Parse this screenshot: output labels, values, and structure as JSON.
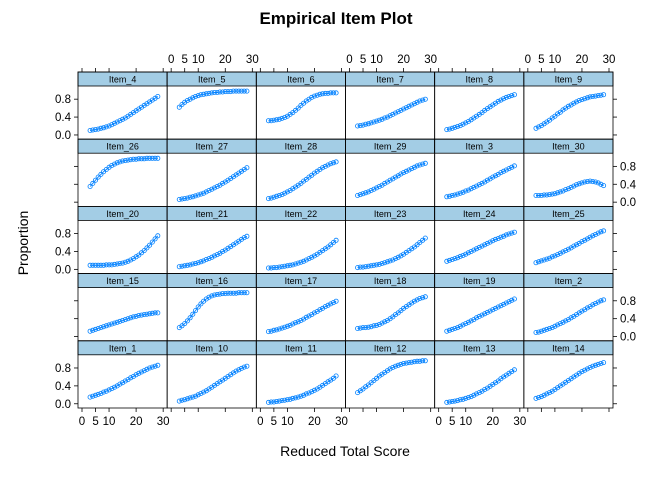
{
  "chart_data": {
    "type": "line",
    "title": "Empirical Item Plot",
    "xlabel": "Reduced Total Score",
    "ylabel": "Proportion",
    "xlim": [
      0,
      30
    ],
    "ylim": [
      -0.05,
      1.05
    ],
    "x_ticks": [
      0,
      5,
      10,
      20,
      30
    ],
    "x_tick_labels": [
      "0",
      "5",
      "10",
      "20",
      "30"
    ],
    "y_ticks": [
      0.0,
      0.4,
      0.8
    ],
    "y_tick_labels": [
      "0.0",
      "0.4",
      "0.8"
    ],
    "grid": false,
    "legend": "none",
    "colors": {
      "series": "#0080ff",
      "strip": "#a3cde5"
    },
    "x": [
      3,
      4,
      5,
      6,
      7,
      8,
      9,
      10,
      11,
      12,
      13,
      14,
      15,
      16,
      17,
      18,
      19,
      20,
      21,
      22,
      23,
      24,
      25,
      26,
      27,
      28
    ],
    "panel_rows": [
      [
        "Item_4",
        "Item_5",
        "Item_6",
        "Item_7",
        "Item_8",
        "Item_9"
      ],
      [
        "Item_26",
        "Item_27",
        "Item_28",
        "Item_29",
        "Item_3",
        "Item_30"
      ],
      [
        "Item_20",
        "Item_21",
        "Item_22",
        "Item_23",
        "Item_24",
        "Item_25"
      ],
      [
        "Item_15",
        "Item_16",
        "Item_17",
        "Item_18",
        "Item_19",
        "Item_2"
      ],
      [
        "Item_1",
        "Item_10",
        "Item_11",
        "Item_12",
        "Item_13",
        "Item_14"
      ]
    ],
    "series": [
      {
        "name": "Item_4",
        "values": [
          0.1,
          0.11,
          0.12,
          0.13,
          0.15,
          0.16,
          0.18,
          0.2,
          0.23,
          0.26,
          0.29,
          0.32,
          0.35,
          0.38,
          0.42,
          0.46,
          0.5,
          0.54,
          0.58,
          0.62,
          0.66,
          0.7,
          0.74,
          0.78,
          0.82,
          0.86
        ]
      },
      {
        "name": "Item_5",
        "values": [
          0.62,
          0.68,
          0.73,
          0.77,
          0.8,
          0.83,
          0.86,
          0.88,
          0.9,
          0.91,
          0.92,
          0.93,
          0.94,
          0.95,
          0.95,
          0.96,
          0.96,
          0.97,
          0.97,
          0.97,
          0.98,
          0.98,
          0.98,
          0.98,
          0.98,
          0.98
        ]
      },
      {
        "name": "Item_6",
        "values": [
          0.32,
          0.32,
          0.33,
          0.34,
          0.35,
          0.37,
          0.39,
          0.42,
          0.46,
          0.5,
          0.55,
          0.6,
          0.66,
          0.71,
          0.76,
          0.8,
          0.84,
          0.87,
          0.89,
          0.91,
          0.92,
          0.93,
          0.93,
          0.94,
          0.94,
          0.94
        ]
      },
      {
        "name": "Item_7",
        "values": [
          0.2,
          0.21,
          0.22,
          0.24,
          0.25,
          0.27,
          0.29,
          0.31,
          0.33,
          0.35,
          0.38,
          0.4,
          0.43,
          0.46,
          0.49,
          0.52,
          0.55,
          0.58,
          0.61,
          0.64,
          0.67,
          0.7,
          0.73,
          0.76,
          0.78,
          0.8
        ]
      },
      {
        "name": "Item_8",
        "values": [
          0.12,
          0.13,
          0.15,
          0.17,
          0.19,
          0.21,
          0.24,
          0.27,
          0.3,
          0.34,
          0.38,
          0.42,
          0.46,
          0.5,
          0.55,
          0.59,
          0.63,
          0.67,
          0.71,
          0.75,
          0.78,
          0.81,
          0.84,
          0.86,
          0.88,
          0.9
        ]
      },
      {
        "name": "Item_9",
        "values": [
          0.15,
          0.18,
          0.21,
          0.25,
          0.29,
          0.33,
          0.38,
          0.42,
          0.47,
          0.51,
          0.56,
          0.6,
          0.64,
          0.67,
          0.71,
          0.74,
          0.77,
          0.79,
          0.81,
          0.83,
          0.85,
          0.86,
          0.87,
          0.88,
          0.89,
          0.9
        ]
      },
      {
        "name": "Item_26",
        "values": [
          0.35,
          0.42,
          0.49,
          0.56,
          0.62,
          0.68,
          0.73,
          0.78,
          0.82,
          0.85,
          0.88,
          0.9,
          0.92,
          0.93,
          0.94,
          0.95,
          0.96,
          0.96,
          0.97,
          0.97,
          0.97,
          0.98,
          0.98,
          0.98,
          0.98,
          0.98
        ]
      },
      {
        "name": "Item_27",
        "values": [
          0.06,
          0.07,
          0.08,
          0.09,
          0.11,
          0.12,
          0.14,
          0.16,
          0.18,
          0.2,
          0.23,
          0.26,
          0.29,
          0.32,
          0.35,
          0.38,
          0.42,
          0.45,
          0.49,
          0.53,
          0.57,
          0.61,
          0.65,
          0.69,
          0.73,
          0.77
        ]
      },
      {
        "name": "Item_28",
        "values": [
          0.08,
          0.09,
          0.11,
          0.13,
          0.15,
          0.17,
          0.2,
          0.23,
          0.26,
          0.3,
          0.34,
          0.38,
          0.42,
          0.47,
          0.51,
          0.56,
          0.6,
          0.65,
          0.69,
          0.73,
          0.77,
          0.8,
          0.83,
          0.86,
          0.88,
          0.9
        ]
      },
      {
        "name": "Item_29",
        "values": [
          0.15,
          0.17,
          0.19,
          0.21,
          0.23,
          0.26,
          0.29,
          0.32,
          0.35,
          0.38,
          0.42,
          0.45,
          0.49,
          0.52,
          0.56,
          0.59,
          0.63,
          0.66,
          0.69,
          0.72,
          0.75,
          0.78,
          0.81,
          0.83,
          0.85,
          0.87
        ]
      },
      {
        "name": "Item_3",
        "values": [
          0.12,
          0.13,
          0.15,
          0.16,
          0.18,
          0.2,
          0.22,
          0.25,
          0.27,
          0.3,
          0.33,
          0.36,
          0.39,
          0.42,
          0.45,
          0.49,
          0.52,
          0.56,
          0.59,
          0.62,
          0.66,
          0.69,
          0.72,
          0.75,
          0.78,
          0.81
        ]
      },
      {
        "name": "Item_30",
        "values": [
          0.15,
          0.15,
          0.15,
          0.16,
          0.16,
          0.17,
          0.18,
          0.19,
          0.21,
          0.23,
          0.25,
          0.28,
          0.3,
          0.33,
          0.36,
          0.39,
          0.41,
          0.43,
          0.45,
          0.46,
          0.47,
          0.46,
          0.45,
          0.43,
          0.4,
          0.37
        ]
      },
      {
        "name": "Item_20",
        "values": [
          0.09,
          0.09,
          0.09,
          0.09,
          0.09,
          0.09,
          0.1,
          0.1,
          0.1,
          0.11,
          0.12,
          0.13,
          0.14,
          0.16,
          0.18,
          0.21,
          0.24,
          0.28,
          0.32,
          0.37,
          0.42,
          0.48,
          0.54,
          0.61,
          0.68,
          0.75
        ]
      },
      {
        "name": "Item_21",
        "values": [
          0.06,
          0.07,
          0.08,
          0.09,
          0.1,
          0.12,
          0.13,
          0.15,
          0.17,
          0.19,
          0.22,
          0.24,
          0.27,
          0.3,
          0.33,
          0.36,
          0.4,
          0.43,
          0.47,
          0.51,
          0.55,
          0.59,
          0.63,
          0.67,
          0.71,
          0.74
        ]
      },
      {
        "name": "Item_22",
        "values": [
          0.03,
          0.03,
          0.04,
          0.04,
          0.05,
          0.06,
          0.07,
          0.08,
          0.09,
          0.1,
          0.12,
          0.14,
          0.16,
          0.18,
          0.21,
          0.24,
          0.27,
          0.3,
          0.34,
          0.38,
          0.42,
          0.46,
          0.5,
          0.55,
          0.6,
          0.65
        ]
      },
      {
        "name": "Item_23",
        "values": [
          0.04,
          0.05,
          0.05,
          0.06,
          0.07,
          0.08,
          0.09,
          0.1,
          0.11,
          0.13,
          0.15,
          0.17,
          0.19,
          0.21,
          0.24,
          0.27,
          0.3,
          0.34,
          0.38,
          0.42,
          0.46,
          0.5,
          0.55,
          0.6,
          0.65,
          0.7
        ]
      },
      {
        "name": "Item_24",
        "values": [
          0.18,
          0.2,
          0.22,
          0.24,
          0.26,
          0.29,
          0.31,
          0.34,
          0.37,
          0.4,
          0.43,
          0.46,
          0.49,
          0.52,
          0.55,
          0.58,
          0.61,
          0.64,
          0.67,
          0.69,
          0.72,
          0.74,
          0.77,
          0.79,
          0.81,
          0.83
        ]
      },
      {
        "name": "Item_25",
        "values": [
          0.15,
          0.17,
          0.19,
          0.21,
          0.23,
          0.25,
          0.28,
          0.3,
          0.33,
          0.36,
          0.39,
          0.42,
          0.45,
          0.48,
          0.52,
          0.55,
          0.58,
          0.62,
          0.65,
          0.68,
          0.72,
          0.75,
          0.78,
          0.81,
          0.84,
          0.86
        ]
      },
      {
        "name": "Item_15",
        "values": [
          0.12,
          0.14,
          0.16,
          0.18,
          0.2,
          0.22,
          0.24,
          0.26,
          0.28,
          0.3,
          0.32,
          0.34,
          0.36,
          0.38,
          0.4,
          0.42,
          0.44,
          0.45,
          0.47,
          0.48,
          0.49,
          0.5,
          0.51,
          0.52,
          0.53,
          0.53
        ]
      },
      {
        "name": "Item_16",
        "values": [
          0.2,
          0.24,
          0.29,
          0.35,
          0.42,
          0.5,
          0.58,
          0.66,
          0.73,
          0.79,
          0.84,
          0.88,
          0.91,
          0.93,
          0.94,
          0.95,
          0.96,
          0.96,
          0.97,
          0.97,
          0.97,
          0.97,
          0.98,
          0.98,
          0.98,
          0.98
        ]
      },
      {
        "name": "Item_17",
        "values": [
          0.11,
          0.12,
          0.14,
          0.15,
          0.17,
          0.19,
          0.21,
          0.23,
          0.25,
          0.28,
          0.31,
          0.33,
          0.36,
          0.39,
          0.43,
          0.46,
          0.49,
          0.53,
          0.56,
          0.6,
          0.63,
          0.67,
          0.7,
          0.73,
          0.76,
          0.79
        ]
      },
      {
        "name": "Item_18",
        "values": [
          0.18,
          0.19,
          0.2,
          0.2,
          0.21,
          0.22,
          0.24,
          0.25,
          0.27,
          0.3,
          0.33,
          0.36,
          0.4,
          0.44,
          0.49,
          0.53,
          0.58,
          0.63,
          0.67,
          0.71,
          0.75,
          0.79,
          0.82,
          0.85,
          0.87,
          0.89
        ]
      },
      {
        "name": "Item_19",
        "values": [
          0.12,
          0.14,
          0.16,
          0.18,
          0.2,
          0.23,
          0.26,
          0.29,
          0.32,
          0.35,
          0.38,
          0.42,
          0.45,
          0.48,
          0.51,
          0.54,
          0.57,
          0.6,
          0.63,
          0.66,
          0.69,
          0.72,
          0.75,
          0.78,
          0.81,
          0.84
        ]
      },
      {
        "name": "Item_2",
        "values": [
          0.09,
          0.1,
          0.12,
          0.14,
          0.16,
          0.18,
          0.2,
          0.23,
          0.26,
          0.29,
          0.32,
          0.35,
          0.38,
          0.42,
          0.45,
          0.49,
          0.53,
          0.57,
          0.6,
          0.64,
          0.67,
          0.71,
          0.74,
          0.77,
          0.8,
          0.82
        ]
      },
      {
        "name": "Item_1",
        "values": [
          0.15,
          0.17,
          0.19,
          0.21,
          0.23,
          0.26,
          0.28,
          0.31,
          0.34,
          0.37,
          0.4,
          0.44,
          0.47,
          0.51,
          0.54,
          0.58,
          0.61,
          0.65,
          0.68,
          0.71,
          0.74,
          0.77,
          0.8,
          0.82,
          0.84,
          0.86
        ]
      },
      {
        "name": "Item_10",
        "values": [
          0.06,
          0.08,
          0.09,
          0.11,
          0.13,
          0.15,
          0.17,
          0.2,
          0.23,
          0.26,
          0.29,
          0.33,
          0.37,
          0.41,
          0.45,
          0.49,
          0.53,
          0.57,
          0.61,
          0.65,
          0.69,
          0.73,
          0.76,
          0.79,
          0.82,
          0.84
        ]
      },
      {
        "name": "Item_11",
        "values": [
          0.03,
          0.04,
          0.04,
          0.05,
          0.06,
          0.07,
          0.08,
          0.09,
          0.1,
          0.12,
          0.13,
          0.15,
          0.17,
          0.19,
          0.22,
          0.24,
          0.27,
          0.3,
          0.33,
          0.37,
          0.41,
          0.45,
          0.49,
          0.53,
          0.57,
          0.62
        ]
      },
      {
        "name": "Item_12",
        "values": [
          0.25,
          0.29,
          0.33,
          0.38,
          0.42,
          0.47,
          0.52,
          0.57,
          0.62,
          0.66,
          0.7,
          0.74,
          0.78,
          0.81,
          0.84,
          0.86,
          0.88,
          0.9,
          0.91,
          0.92,
          0.93,
          0.94,
          0.95,
          0.95,
          0.96,
          0.96
        ]
      },
      {
        "name": "Item_13",
        "values": [
          0.03,
          0.04,
          0.05,
          0.06,
          0.07,
          0.09,
          0.1,
          0.12,
          0.14,
          0.16,
          0.19,
          0.22,
          0.25,
          0.28,
          0.32,
          0.35,
          0.39,
          0.43,
          0.47,
          0.51,
          0.56,
          0.6,
          0.64,
          0.68,
          0.72,
          0.76
        ]
      },
      {
        "name": "Item_14",
        "values": [
          0.12,
          0.14,
          0.16,
          0.19,
          0.22,
          0.25,
          0.28,
          0.32,
          0.36,
          0.4,
          0.44,
          0.48,
          0.52,
          0.56,
          0.6,
          0.64,
          0.68,
          0.72,
          0.75,
          0.78,
          0.81,
          0.84,
          0.86,
          0.88,
          0.9,
          0.92
        ]
      }
    ]
  }
}
